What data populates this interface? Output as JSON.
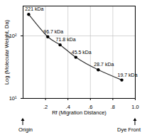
{
  "chart_data": {
    "type": "line",
    "x_label": "Rf (Migration Distance)",
    "y_label": "Log (Molecular Weight, Da)",
    "x": [
      0.05,
      0.22,
      0.33,
      0.47,
      0.67,
      0.88
    ],
    "values": [
      221,
      96.7,
      71.8,
      45.5,
      28.7,
      19.7
    ],
    "value_labels": [
      "221 kDa",
      "96.7 kDa",
      "71.8 kDa",
      "45.5 kDa",
      "28.7 kDa",
      "19.7 kDa"
    ],
    "data_labels": true,
    "marker": "circle",
    "color": "#333333",
    "log": "y",
    "grid": true,
    "xlim": [
      0,
      1
    ],
    "xticks": [
      {
        "value": 0.2,
        "label": ".2"
      },
      {
        "value": 0.4,
        "label": ".4"
      },
      {
        "value": 0.6,
        "label": ".6"
      },
      {
        "value": 0.8,
        "label": ".8"
      },
      {
        "value": 1,
        "label": "1.0"
      }
    ],
    "ylim": [
      10,
      300
    ],
    "yticks": [
      {
        "value": 10,
        "label": "10¹"
      },
      {
        "value": 100,
        "label": "10²"
      }
    ],
    "annotations": [
      {
        "x": 0,
        "text": "Origin"
      },
      {
        "x": 1,
        "text": "Dye Front"
      }
    ]
  }
}
